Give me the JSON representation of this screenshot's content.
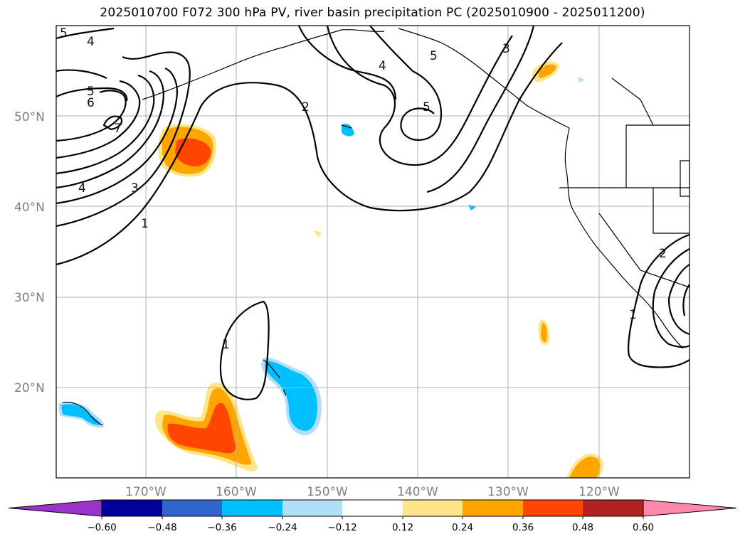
{
  "title": "2025010700 F072 300 hPa PV, river basin precipitation PC (2025010900 - 2025011200)",
  "lon_labels": [
    "170°W",
    "160°W",
    "150°W",
    "140°W",
    "130°W",
    "120°W"
  ],
  "lat_labels": [
    "50°N",
    "40°N",
    "30°N",
    "20°N"
  ],
  "colorbar": {
    "ticks": [
      "−0.60",
      "−0.48",
      "−0.36",
      "−0.24",
      "−0.12",
      "0.12",
      "0.24",
      "0.36",
      "0.48",
      "0.60"
    ],
    "colors": [
      "#9933cc",
      "#000099",
      "#3366cc",
      "#00bfff",
      "#b0e0f7",
      "#ffffff",
      "#ffe58a",
      "#ffa500",
      "#ff4500",
      "#b22222",
      "#ff88aa"
    ]
  },
  "contour_labels": [
    "5",
    "4",
    "5",
    "6",
    "7",
    "4",
    "3",
    "1",
    "2",
    "4",
    "5",
    "5",
    "3",
    "1",
    "2",
    "1"
  ]
}
